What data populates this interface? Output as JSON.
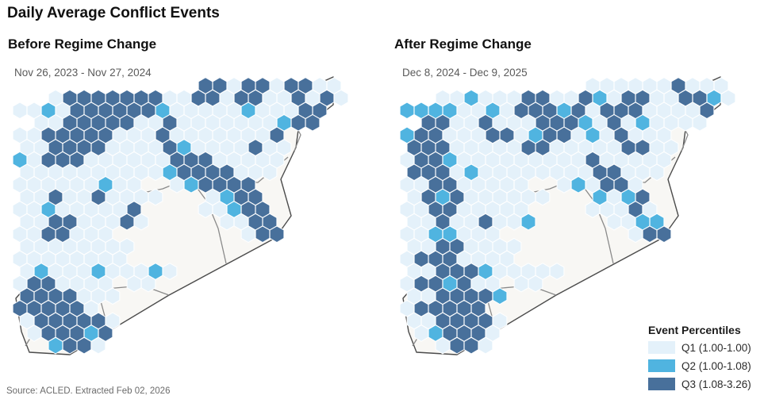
{
  "page": {
    "title": "Daily Average Conflict Events",
    "source": "Source: ACLED. Extracted Feb 02, 2026"
  },
  "legend": {
    "title": "Event Percentiles",
    "items": [
      {
        "label": "Q1 (1.00-1.00)",
        "color": "#e4f1fa"
      },
      {
        "label": "Q2 (1.00-1.08)",
        "color": "#50b4e0"
      },
      {
        "label": "Q3 (1.08-3.26)",
        "color": "#48709b"
      }
    ]
  },
  "chart_data": {
    "type": "hexbin_map",
    "region": "Syria",
    "title": "Daily Average Conflict Events",
    "quartiles": [
      {
        "name": "Q1",
        "range": [
          1.0,
          1.0
        ]
      },
      {
        "name": "Q2",
        "range": [
          1.0,
          1.08
        ]
      },
      {
        "name": "Q3",
        "range": [
          1.08,
          3.26
        ]
      }
    ],
    "coverage_rows": [
      [
        0,
        13,
        22
      ],
      [
        1,
        2,
        22
      ],
      [
        2,
        0,
        21
      ],
      [
        3,
        1,
        20
      ],
      [
        4,
        0,
        18
      ],
      [
        5,
        0,
        18
      ],
      [
        6,
        0,
        18
      ],
      [
        7,
        0,
        17
      ],
      [
        8,
        0,
        8
      ],
      [
        8,
        11,
        16
      ],
      [
        9,
        0,
        9
      ],
      [
        9,
        13,
        16
      ],
      [
        10,
        0,
        8
      ],
      [
        10,
        13,
        17
      ],
      [
        11,
        0,
        8
      ],
      [
        11,
        14,
        17
      ],
      [
        12,
        0,
        6
      ],
      [
        12,
        16,
        18
      ],
      [
        13,
        0,
        7
      ],
      [
        14,
        0,
        7
      ],
      [
        15,
        0,
        7
      ],
      [
        15,
        8,
        10
      ],
      [
        16,
        0,
        6
      ],
      [
        16,
        8,
        9
      ],
      [
        17,
        0,
        6
      ],
      [
        18,
        0,
        5
      ],
      [
        19,
        0,
        6
      ],
      [
        20,
        1,
        6
      ],
      [
        21,
        2,
        5
      ]
    ],
    "maps": [
      {
        "id": "before",
        "title": "Before Regime Change",
        "date_range": "Nov 26, 2023 - Nov 27, 2024",
        "q3_cells": [
          [
            3,
            1
          ],
          [
            4,
            1
          ],
          [
            5,
            1
          ],
          [
            6,
            1
          ],
          [
            7,
            1
          ],
          [
            8,
            1
          ],
          [
            9,
            1
          ],
          [
            4,
            2
          ],
          [
            5,
            2
          ],
          [
            6,
            2
          ],
          [
            7,
            2
          ],
          [
            8,
            2
          ],
          [
            9,
            2
          ],
          [
            3,
            3
          ],
          [
            4,
            3
          ],
          [
            5,
            3
          ],
          [
            6,
            3
          ],
          [
            7,
            3
          ],
          [
            2,
            4
          ],
          [
            3,
            4
          ],
          [
            4,
            4
          ],
          [
            5,
            4
          ],
          [
            6,
            4
          ],
          [
            2,
            5
          ],
          [
            3,
            5
          ],
          [
            4,
            5
          ],
          [
            5,
            5
          ],
          [
            2,
            6
          ],
          [
            3,
            6
          ],
          [
            4,
            6
          ],
          [
            13,
            0
          ],
          [
            14,
            0
          ],
          [
            16,
            0
          ],
          [
            17,
            0
          ],
          [
            19,
            0
          ],
          [
            20,
            0
          ],
          [
            12,
            1
          ],
          [
            13,
            1
          ],
          [
            15,
            1
          ],
          [
            16,
            1
          ],
          [
            19,
            1
          ],
          [
            21,
            1
          ],
          [
            20,
            2
          ],
          [
            21,
            2
          ],
          [
            19,
            3
          ],
          [
            20,
            3
          ],
          [
            18,
            4
          ],
          [
            19,
            4
          ],
          [
            10,
            3
          ],
          [
            10,
            4
          ],
          [
            10,
            5
          ],
          [
            11,
            6
          ],
          [
            11,
            7
          ],
          [
            12,
            7
          ],
          [
            16,
            5
          ],
          [
            12,
            6
          ],
          [
            13,
            6
          ],
          [
            13,
            7
          ],
          [
            14,
            7
          ],
          [
            13,
            8
          ],
          [
            14,
            8
          ],
          [
            15,
            8
          ],
          [
            16,
            8
          ],
          [
            15,
            9
          ],
          [
            16,
            9
          ],
          [
            16,
            10
          ],
          [
            17,
            10
          ],
          [
            16,
            11
          ],
          [
            17,
            11
          ],
          [
            17,
            12
          ],
          [
            18,
            12
          ],
          [
            2,
            9
          ],
          [
            5,
            9
          ],
          [
            8,
            10
          ],
          [
            7,
            11
          ],
          [
            2,
            11
          ],
          [
            3,
            11
          ],
          [
            2,
            12
          ],
          [
            3,
            12
          ],
          [
            1,
            16
          ],
          [
            2,
            16
          ],
          [
            0,
            17
          ],
          [
            1,
            17
          ],
          [
            2,
            17
          ],
          [
            3,
            17
          ],
          [
            0,
            18
          ],
          [
            1,
            18
          ],
          [
            2,
            18
          ],
          [
            3,
            18
          ],
          [
            4,
            18
          ],
          [
            1,
            19
          ],
          [
            2,
            19
          ],
          [
            3,
            19
          ],
          [
            4,
            19
          ],
          [
            5,
            19
          ],
          [
            2,
            20
          ],
          [
            3,
            20
          ],
          [
            4,
            20
          ],
          [
            6,
            20
          ],
          [
            3,
            21
          ],
          [
            4,
            21
          ]
        ],
        "q2_cells": [
          [
            2,
            2
          ],
          [
            10,
            2
          ],
          [
            16,
            2
          ],
          [
            18,
            3
          ],
          [
            11,
            5
          ],
          [
            0,
            6
          ],
          [
            6,
            8
          ],
          [
            12,
            8
          ],
          [
            14,
            9
          ],
          [
            15,
            10
          ],
          [
            2,
            10
          ],
          [
            10,
            7
          ],
          [
            1,
            15
          ],
          [
            5,
            15
          ],
          [
            9,
            15
          ],
          [
            5,
            20
          ],
          [
            2,
            21
          ]
        ]
      },
      {
        "id": "after",
        "title": "After Regime Change",
        "date_range": "Dec 8, 2024 - Dec 9, 2025",
        "q3_cells": [
          [
            1,
            3
          ],
          [
            2,
            3
          ],
          [
            1,
            4
          ],
          [
            2,
            4
          ],
          [
            0,
            5
          ],
          [
            1,
            5
          ],
          [
            2,
            5
          ],
          [
            1,
            6
          ],
          [
            2,
            6
          ],
          [
            0,
            7
          ],
          [
            1,
            7
          ],
          [
            2,
            7
          ],
          [
            2,
            8
          ],
          [
            3,
            8
          ],
          [
            1,
            9
          ],
          [
            3,
            9
          ],
          [
            2,
            10
          ],
          [
            3,
            10
          ],
          [
            2,
            11
          ],
          [
            5,
            3
          ],
          [
            6,
            4
          ],
          [
            7,
            4
          ],
          [
            8,
            2
          ],
          [
            9,
            2
          ],
          [
            10,
            2
          ],
          [
            9,
            3
          ],
          [
            10,
            3
          ],
          [
            11,
            3
          ],
          [
            10,
            4
          ],
          [
            11,
            4
          ],
          [
            8,
            5
          ],
          [
            9,
            5
          ],
          [
            12,
            2
          ],
          [
            8,
            1
          ],
          [
            9,
            1
          ],
          [
            12,
            1
          ],
          [
            15,
            1
          ],
          [
            16,
            1
          ],
          [
            14,
            2
          ],
          [
            15,
            2
          ],
          [
            16,
            2
          ],
          [
            14,
            3
          ],
          [
            19,
            0
          ],
          [
            19,
            1
          ],
          [
            20,
            1
          ],
          [
            21,
            2
          ],
          [
            15,
            4
          ],
          [
            15,
            5
          ],
          [
            16,
            5
          ],
          [
            13,
            6
          ],
          [
            13,
            7
          ],
          [
            14,
            7
          ],
          [
            14,
            8
          ],
          [
            15,
            8
          ],
          [
            16,
            9
          ],
          [
            16,
            10
          ],
          [
            17,
            12
          ],
          [
            18,
            12
          ],
          [
            5,
            11
          ],
          [
            2,
            13
          ],
          [
            3,
            13
          ],
          [
            1,
            14
          ],
          [
            2,
            14
          ],
          [
            3,
            14
          ],
          [
            2,
            15
          ],
          [
            3,
            15
          ],
          [
            4,
            15
          ],
          [
            1,
            16
          ],
          [
            2,
            16
          ],
          [
            4,
            16
          ],
          [
            2,
            17
          ],
          [
            3,
            17
          ],
          [
            4,
            17
          ],
          [
            5,
            17
          ],
          [
            1,
            18
          ],
          [
            2,
            18
          ],
          [
            3,
            18
          ],
          [
            4,
            18
          ],
          [
            5,
            18
          ],
          [
            2,
            19
          ],
          [
            3,
            19
          ],
          [
            4,
            19
          ],
          [
            5,
            19
          ],
          [
            3,
            20
          ],
          [
            4,
            20
          ],
          [
            5,
            20
          ],
          [
            3,
            21
          ],
          [
            4,
            21
          ]
        ],
        "q2_cells": [
          [
            0,
            2
          ],
          [
            1,
            2
          ],
          [
            2,
            2
          ],
          [
            3,
            2
          ],
          [
            4,
            1
          ],
          [
            6,
            2
          ],
          [
            11,
            2
          ],
          [
            13,
            1
          ],
          [
            9,
            4
          ],
          [
            13,
            4
          ],
          [
            16,
            3
          ],
          [
            21,
            1
          ],
          [
            12,
            3
          ],
          [
            0,
            4
          ],
          [
            3,
            6
          ],
          [
            4,
            7
          ],
          [
            2,
            9
          ],
          [
            2,
            12
          ],
          [
            3,
            12
          ],
          [
            8,
            11
          ],
          [
            3,
            16
          ],
          [
            2,
            20
          ],
          [
            5,
            15
          ],
          [
            13,
            9
          ],
          [
            15,
            9
          ],
          [
            16,
            11
          ],
          [
            17,
            11
          ],
          [
            12,
            8
          ],
          [
            6,
            17
          ]
        ]
      }
    ]
  }
}
